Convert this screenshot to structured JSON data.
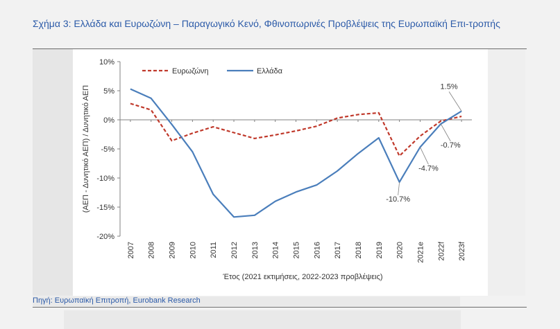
{
  "header": {
    "title": "Σχήμα 3: Ελλάδα και Ευρωζώνη – Παραγωγικό Κενό, Φθινοπωρινές Προβλέψεις της Ευρωπαϊκή Επι-τροπής"
  },
  "footer": {
    "source": "Πηγή: Ευρωπαϊκή Επιτροπή, Eurobank Research"
  },
  "chart_data": {
    "type": "line",
    "title": "",
    "xlabel": "Έτος (2021 εκτιμήσεις, 2022-2023 προβλέψεις)",
    "ylabel": "(ΑΕΠ - Δυνητικό ΑΕΠ) / Δυνητικό ΑΕΠ",
    "categories": [
      "2007",
      "2008",
      "2009",
      "2010",
      "2011",
      "2012",
      "2013",
      "2014",
      "2015",
      "2016",
      "2017",
      "2018",
      "2019",
      "2020",
      "2021e",
      "2022f",
      "2023f"
    ],
    "ylim": [
      -20,
      10
    ],
    "yticks": [
      10,
      5,
      0,
      -5,
      -10,
      -15,
      -20
    ],
    "ytick_labels": [
      "10%",
      "5%",
      "0%",
      "-5%",
      "-10%",
      "-15%",
      "-20%"
    ],
    "legend_position": "top-left",
    "grid": false,
    "series": [
      {
        "name": "Ευρωζώνη",
        "style": "dashed",
        "color": "#c0392b",
        "values": [
          2.8,
          1.7,
          -3.6,
          -2.3,
          -1.2,
          -2.2,
          -3.2,
          -2.6,
          -1.9,
          -1.1,
          0.3,
          0.9,
          1.2,
          -6.2,
          -2.8,
          -0.2,
          0.6
        ]
      },
      {
        "name": "Ελλάδα",
        "style": "solid",
        "color": "#4a7ebb",
        "values": [
          5.3,
          3.7,
          -0.8,
          -5.5,
          -12.8,
          -16.7,
          -16.4,
          -14.0,
          -12.4,
          -11.2,
          -8.8,
          -5.8,
          -3.1,
          -10.7,
          -4.7,
          -0.7,
          1.5
        ]
      }
    ],
    "annotations": [
      {
        "label": "1.5%",
        "category": "2023f",
        "value": 1.5
      },
      {
        "label": "-0.7%",
        "category": "2022f",
        "value": -0.7
      },
      {
        "label": "-4.7%",
        "category": "2021e",
        "value": -4.7
      },
      {
        "label": "-10.7%",
        "category": "2020",
        "value": -10.7
      }
    ]
  }
}
